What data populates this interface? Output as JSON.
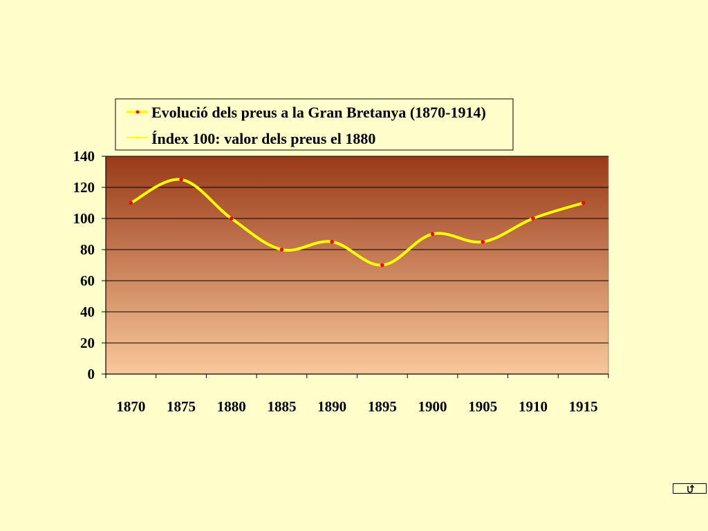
{
  "chart_data": {
    "type": "line",
    "x": [
      1870,
      1875,
      1880,
      1885,
      1890,
      1895,
      1900,
      1905,
      1910,
      1915
    ],
    "series": [
      {
        "name": "Evolució dels preus a la Gran Bretanya (1870-1914)",
        "values": [
          110,
          125,
          100,
          80,
          85,
          70,
          90,
          85,
          100,
          110
        ]
      }
    ],
    "legend": [
      "Evolució dels preus a la Gran Bretanya (1870-1914)",
      "Índex 100: valor dels preus el 1880"
    ],
    "xticks": [
      "1870",
      "1875",
      "1880",
      "1885",
      "1890",
      "1895",
      "1900",
      "1905",
      "1910",
      "1915"
    ],
    "yticks": [
      0,
      20,
      40,
      60,
      80,
      100,
      120,
      140
    ],
    "ylim": [
      0,
      140
    ],
    "grid": true,
    "legend_position": "top",
    "colors": {
      "line": "#FFFF00",
      "marker": "#FF0000",
      "plot_top": "#993A18",
      "plot_bottom": "#F9C89A",
      "page_background": "#FFFFCC"
    }
  },
  "nav": {
    "icon": "return-arrow-icon"
  }
}
